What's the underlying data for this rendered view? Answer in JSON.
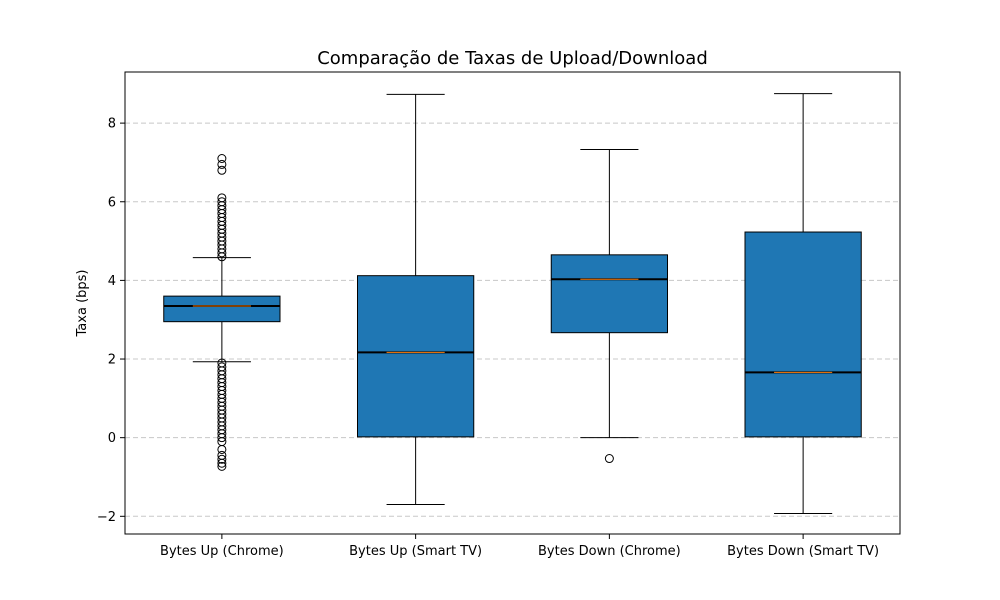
{
  "chart_data": {
    "type": "box",
    "title": "Comparação de Taxas de Upload/Download",
    "xlabel": "",
    "ylabel": "Taxa (bps)",
    "ylim": [
      -2.45,
      9.3
    ],
    "yticks": [
      -2,
      0,
      2,
      4,
      6,
      8
    ],
    "ytick_labels": [
      "−2",
      "0",
      "2",
      "4",
      "6",
      "8"
    ],
    "grid": "y, dashed",
    "box_color": "#1f77b4",
    "median_color": "#ff7f0e",
    "categories": [
      "Bytes Up (Chrome)",
      "Bytes Up (Smart TV)",
      "Bytes Down (Chrome)",
      "Bytes Down (Smart TV)"
    ],
    "boxes": [
      {
        "whislo": 1.93,
        "q1": 2.95,
        "med": 3.35,
        "q3": 3.6,
        "whishi": 4.58,
        "fliers": [
          7.1,
          6.95,
          6.8,
          6.1,
          6.0,
          5.9,
          5.8,
          5.7,
          5.6,
          5.5,
          5.4,
          5.3,
          5.2,
          5.1,
          5.0,
          4.9,
          4.8,
          4.7,
          4.6,
          1.9,
          1.8,
          1.7,
          1.6,
          1.5,
          1.4,
          1.3,
          1.2,
          1.1,
          1.0,
          0.9,
          0.8,
          0.7,
          0.6,
          0.5,
          0.4,
          0.3,
          0.2,
          0.1,
          0.0,
          -0.1,
          -0.3,
          -0.45,
          -0.55,
          -0.65,
          -0.73
        ]
      },
      {
        "whislo": -1.7,
        "q1": 0.02,
        "med": 2.17,
        "q3": 4.12,
        "whishi": 8.73,
        "fliers": []
      },
      {
        "whislo": 0.0,
        "q1": 2.67,
        "med": 4.03,
        "q3": 4.65,
        "whishi": 7.33,
        "fliers": [
          -0.53
        ]
      },
      {
        "whislo": -1.93,
        "q1": 0.02,
        "med": 1.66,
        "q3": 5.23,
        "whishi": 8.75,
        "fliers": []
      }
    ]
  }
}
